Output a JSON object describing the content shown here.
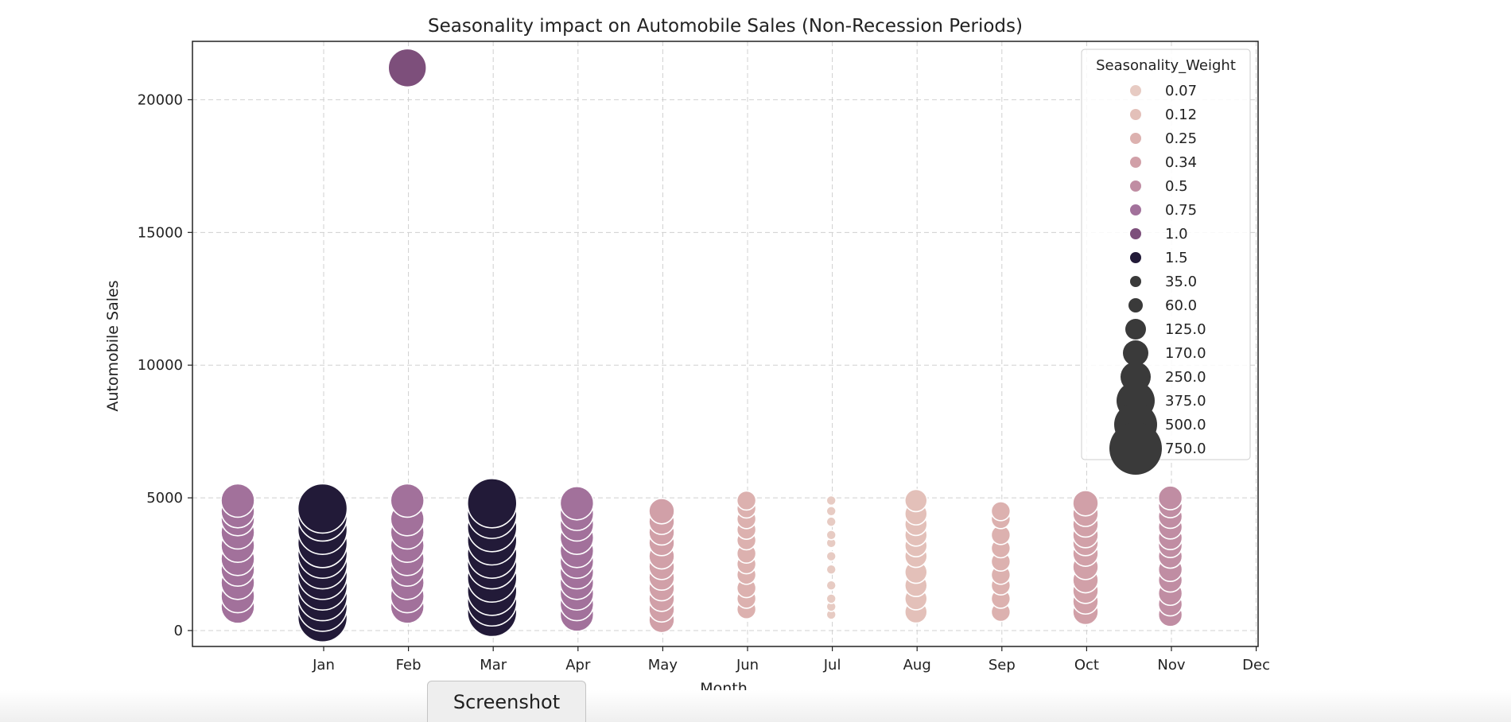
{
  "chart_data": {
    "type": "scatter",
    "title": "Seasonality impact on Automobile Sales (Non-Recession Periods)",
    "xlabel": "Month",
    "ylabel": "Automobile Sales",
    "xticks": [
      "Jan",
      "Feb",
      "Mar",
      "Apr",
      "May",
      "Jun",
      "Jul",
      "Aug",
      "Sep",
      "Oct",
      "Nov",
      "Dec"
    ],
    "yticks": [
      0,
      5000,
      10000,
      15000,
      20000
    ],
    "ylim": [
      -600,
      22200
    ],
    "grid": true,
    "legend": {
      "title": "Seasonality_Weight",
      "placement": "top-right",
      "hue_entries": [
        {
          "label": "0.07",
          "color": "#e7cbc3"
        },
        {
          "label": "0.12",
          "color": "#e3c0b9"
        },
        {
          "label": "0.25",
          "color": "#dcb1af"
        },
        {
          "label": "0.34",
          "color": "#d1a0a8"
        },
        {
          "label": "0.5",
          "color": "#c08da3"
        },
        {
          "label": "0.75",
          "color": "#a2719b"
        },
        {
          "label": "1.0",
          "color": "#7d4f7b"
        },
        {
          "label": "1.5",
          "color": "#221a38"
        }
      ],
      "size_entries": [
        "35.0",
        "60.0",
        "125.0",
        "170.0",
        "250.0",
        "375.0",
        "500.0",
        "750.0"
      ],
      "size_marker_color": "#3a3a3a"
    },
    "groups": [
      {
        "month_index": 0,
        "weight": "0.75",
        "sales": [
          900,
          1300,
          1800,
          2300,
          2700,
          3200,
          3700,
          4200,
          4500,
          4900
        ]
      },
      {
        "month_index": 1,
        "weight": "1.5",
        "sales": [
          500,
          900,
          1300,
          1700,
          2100,
          2500,
          2900,
          3300,
          3800,
          4300,
          4600
        ]
      },
      {
        "month_index": 2,
        "weight": "0.75",
        "sales": [
          900,
          1300,
          1800,
          2300,
          2700,
          3200,
          3700,
          4200,
          4900
        ]
      },
      {
        "month_index": 2,
        "weight": "1.0",
        "sales": [
          21200
        ]
      },
      {
        "month_index": 3,
        "weight": "1.5",
        "sales": [
          700,
          1100,
          1500,
          2000,
          2500,
          2900,
          3400,
          3900,
          4400,
          4800
        ]
      },
      {
        "month_index": 4,
        "weight": "0.75",
        "sales": [
          600,
          1000,
          1400,
          1800,
          2200,
          2600,
          3000,
          3500,
          4000,
          4400,
          4800
        ]
      },
      {
        "month_index": 5,
        "weight": "0.34",
        "sales": [
          400,
          800,
          1200,
          1600,
          2000,
          2400,
          2800,
          3300,
          3700,
          4100,
          4500
        ]
      },
      {
        "month_index": 6,
        "weight": "0.25",
        "sales": [
          800,
          1200,
          1600,
          2100,
          2500,
          2900,
          3400,
          3800,
          4200,
          4600,
          4900
        ]
      },
      {
        "month_index": 7,
        "weight": "0.07",
        "sales": [
          600,
          900,
          1200,
          1700,
          2300,
          2800,
          3300,
          3600,
          4100,
          4500,
          4900
        ]
      },
      {
        "month_index": 8,
        "weight": "0.12",
        "sales": [
          700,
          1200,
          1700,
          2200,
          2800,
          3200,
          3600,
          4000,
          4400,
          4900
        ]
      },
      {
        "month_index": 9,
        "weight": "0.25",
        "sales": [
          700,
          1200,
          1700,
          2100,
          2600,
          3100,
          3600,
          4200,
          4500
        ]
      },
      {
        "month_index": 10,
        "weight": "0.34",
        "sales": [
          700,
          1100,
          1500,
          1900,
          2400,
          2900,
          3300,
          3600,
          4000,
          4400,
          4800
        ]
      },
      {
        "month_index": 11,
        "weight": "0.5",
        "sales": [
          600,
          1000,
          1400,
          1900,
          2300,
          2800,
          3200,
          3500,
          3900,
          4300,
          4700,
          5000
        ]
      }
    ]
  },
  "ui": {
    "screenshot_button_label": "Screenshot"
  }
}
